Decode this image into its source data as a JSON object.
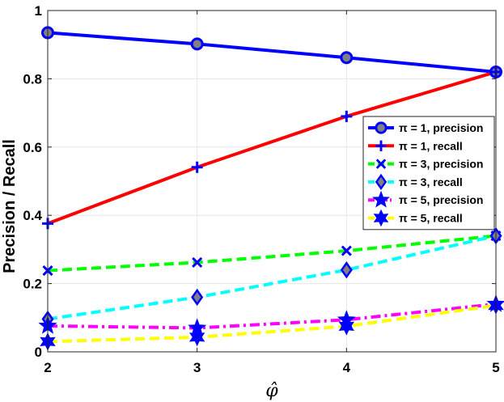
{
  "chart_data": {
    "type": "line",
    "xlabel": "φ̂",
    "ylabel": "Precision / Recall",
    "x": [
      2,
      3,
      4,
      5
    ],
    "xlim": [
      2,
      5
    ],
    "ylim": [
      0,
      1
    ],
    "xticks": [
      "2",
      "3",
      "4",
      "5"
    ],
    "yticks": [
      "0",
      "0.2",
      "0.4",
      "0.6",
      "0.8",
      "1"
    ],
    "grid": true,
    "legend_position": "center-right",
    "series": [
      {
        "name": "π = 1, precision",
        "values": [
          0.935,
          0.902,
          0.862,
          0.82
        ],
        "color": "#0000ff",
        "dash": "solid",
        "marker": "circle"
      },
      {
        "name": "π = 1, recall",
        "values": [
          0.376,
          0.541,
          0.69,
          0.82
        ],
        "color": "#ff0000",
        "dash": "solid",
        "marker": "plus"
      },
      {
        "name": "π = 3, precision",
        "values": [
          0.238,
          0.262,
          0.296,
          0.34
        ],
        "color": "#00ff00",
        "dash": "dashed",
        "marker": "x"
      },
      {
        "name": "π = 3, recall",
        "values": [
          0.096,
          0.16,
          0.24,
          0.34
        ],
        "color": "#00ffff",
        "dash": "dashed",
        "marker": "diamond"
      },
      {
        "name": "π = 5, precision",
        "values": [
          0.076,
          0.07,
          0.094,
          0.14
        ],
        "color": "#ff00ff",
        "dash": "dashdot",
        "marker": "star5"
      },
      {
        "name": "π = 5, recall",
        "values": [
          0.03,
          0.043,
          0.075,
          0.136
        ],
        "color": "#ffff00",
        "dash": "dashed",
        "marker": "star6"
      }
    ]
  }
}
